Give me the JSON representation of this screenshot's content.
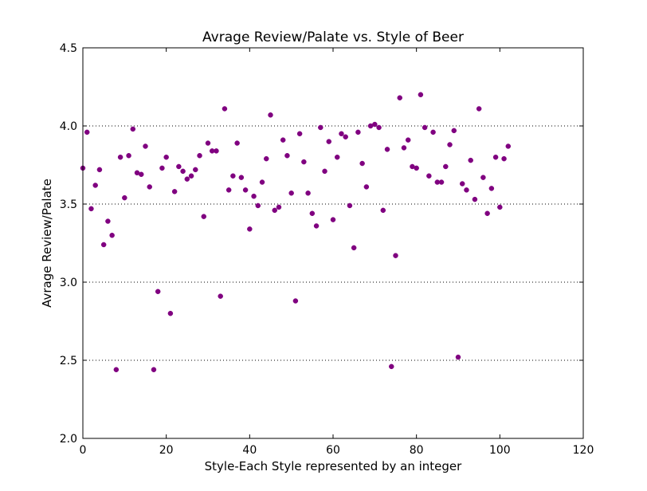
{
  "chart_data": {
    "type": "scatter",
    "title": "Avrage Review/Palate vs. Style of Beer",
    "xlabel": "Style-Each Style represented by an integer",
    "ylabel": "Avrage Review/Palate",
    "xlim": [
      0,
      120
    ],
    "ylim": [
      2.0,
      4.5
    ],
    "x_ticks": [
      0,
      20,
      40,
      60,
      80,
      100,
      120
    ],
    "y_ticks": [
      2.0,
      2.5,
      3.0,
      3.5,
      4.0,
      4.5
    ],
    "x_tick_labels": [
      "0",
      "20",
      "40",
      "60",
      "80",
      "100",
      "120"
    ],
    "y_tick_labels": [
      "2.0",
      "2.5",
      "3.0",
      "3.5",
      "4.0",
      "4.5"
    ],
    "grid": "horizontal dotted",
    "marker_color": "#800080",
    "series": [
      {
        "x": [
          0,
          1,
          2,
          3,
          4,
          5,
          6,
          7,
          8,
          9,
          10,
          11,
          12,
          13,
          14,
          15,
          16,
          17,
          18,
          19,
          20,
          21,
          22,
          23,
          24,
          25,
          26,
          27,
          28,
          29,
          30,
          31,
          32,
          33,
          34,
          35,
          36,
          37,
          38,
          39,
          40,
          41,
          42,
          43,
          44,
          45,
          46,
          47,
          48,
          49,
          50,
          51,
          52,
          53,
          54,
          55,
          56,
          57,
          58,
          59,
          60,
          61,
          62,
          63,
          64,
          65,
          66,
          67,
          68,
          69,
          70,
          71,
          72,
          73,
          74,
          75,
          76,
          77,
          78,
          79,
          80,
          81,
          82,
          83,
          84,
          85,
          86,
          87,
          88,
          89,
          90,
          91,
          92,
          93,
          94,
          95,
          96,
          97,
          98,
          99,
          100,
          101,
          102
        ],
        "y": [
          3.73,
          3.96,
          3.47,
          3.62,
          3.72,
          3.24,
          3.39,
          3.3,
          2.44,
          3.8,
          3.54,
          3.81,
          3.98,
          3.7,
          3.69,
          3.87,
          3.61,
          2.44,
          2.94,
          3.73,
          3.8,
          2.8,
          3.58,
          3.74,
          3.71,
          3.66,
          3.68,
          3.72,
          3.81,
          3.42,
          3.89,
          3.84,
          3.84,
          2.91,
          4.11,
          3.59,
          3.68,
          3.89,
          3.67,
          3.59,
          3.34,
          3.55,
          3.49,
          3.64,
          3.79,
          4.07,
          3.46,
          3.48,
          3.91,
          3.81,
          3.57,
          2.88,
          3.95,
          3.77,
          3.57,
          3.44,
          3.36,
          3.99,
          3.71,
          3.9,
          3.4,
          3.8,
          3.95,
          3.93,
          3.49,
          3.22,
          3.96,
          3.76,
          3.61,
          4.0,
          4.01,
          3.99,
          3.46,
          3.85,
          2.46,
          3.17,
          4.18,
          3.86,
          3.91,
          3.74,
          3.73,
          4.2,
          3.99,
          3.68,
          3.96,
          3.64,
          3.64,
          3.74,
          3.88,
          3.97,
          2.52,
          3.63,
          3.59,
          3.78,
          3.53,
          4.11,
          3.67,
          3.44,
          3.6,
          3.8,
          3.48,
          3.79,
          3.87
        ]
      }
    ]
  }
}
